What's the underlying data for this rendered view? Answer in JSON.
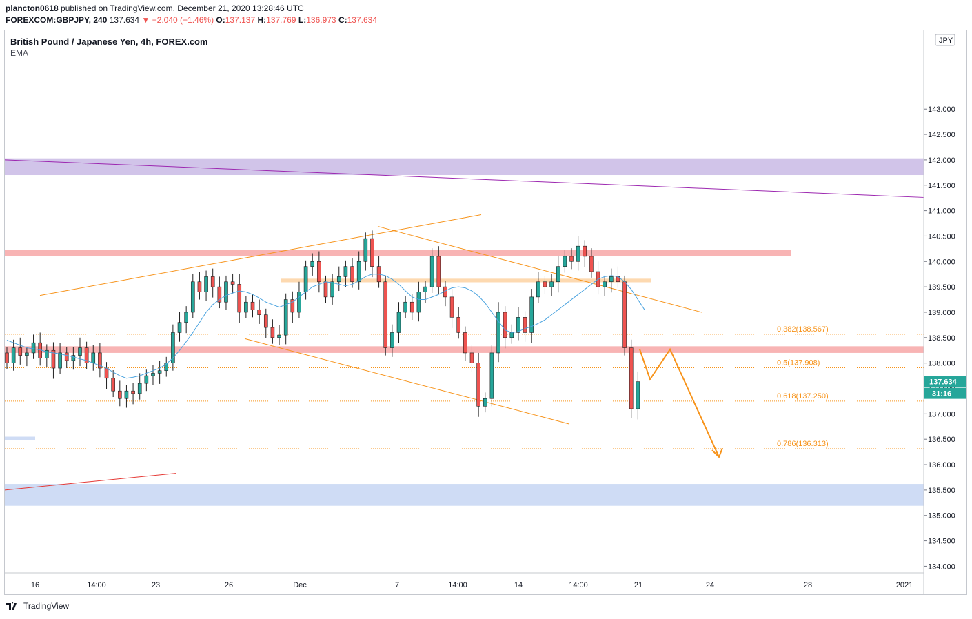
{
  "header": {
    "publisher": "plancton0618",
    "published_text": "published on TradingView.com, December 21, 2020 13:28:46 UTC",
    "symbol": "FOREXCOM:GBPJPY, 240",
    "last": "137.634",
    "change": "▼ −2.040 (−1.46%)",
    "o_label": "O:",
    "o_value": "137.137",
    "h_label": "H:",
    "h_value": "137.769",
    "l_label": "L:",
    "l_value": "136.973",
    "c_label": "C:",
    "c_value": "137.634"
  },
  "legend": {
    "title": "British Pound / Japanese Yen, 4h, FOREX.com",
    "indicator": "EMA"
  },
  "footer": {
    "brand": "TradingView"
  },
  "colors": {
    "up": "#26a69a",
    "down": "#ef5350",
    "orange": "#f7931a",
    "ema": "#4aa3df",
    "purple_trend": "#9c27b0",
    "red_trend": "#e53935"
  },
  "chart_data": {
    "type": "candlestick",
    "currency": "JPY",
    "ylim": [
      133.87,
      144.55
    ],
    "y_ticks": [
      "134.000",
      "134.500",
      "135.000",
      "135.500",
      "136.000",
      "136.500",
      "137.000",
      "137.500",
      "138.000",
      "138.500",
      "139.000",
      "139.500",
      "140.000",
      "140.500",
      "141.000",
      "141.500",
      "142.000",
      "142.500",
      "143.000"
    ],
    "x_ticks": [
      "16",
      "14:00",
      "23",
      "26",
      "Dec",
      "7",
      "14:00",
      "14",
      "14:00",
      "21",
      "24",
      "28",
      "2021"
    ],
    "last_price": "137.634",
    "countdown": "31:16",
    "fib_levels": [
      {
        "label": "0.382(138.567)",
        "price": 138.567
      },
      {
        "label": "0.5(137.908)",
        "price": 137.908
      },
      {
        "label": "0.618(137.250)",
        "price": 137.25
      },
      {
        "label": "0.786(136.313)",
        "price": 136.313
      }
    ],
    "zones": [
      {
        "name": "purple-resistance-zone",
        "from": 141.7,
        "to": 142.03,
        "color": "#d1c4e9"
      },
      {
        "name": "red-zone-upper",
        "from": 140.1,
        "to": 140.23,
        "color": "#f8b4b4"
      },
      {
        "name": "red-zone-lower",
        "from": 138.2,
        "to": 138.33,
        "color": "#f8b4b4"
      },
      {
        "name": "orange-zone",
        "from": 139.59,
        "to": 139.66,
        "color": "#fdd9b0"
      },
      {
        "name": "blue-support-zone",
        "from": 135.19,
        "to": 135.62,
        "color": "#cfdcf5"
      },
      {
        "name": "blue-small-zone",
        "from": 136.48,
        "to": 136.55,
        "color": "#cfdcf5"
      }
    ],
    "ema": [
      138.45,
      138.4,
      138.35,
      138.3,
      138.28,
      138.26,
      138.22,
      138.2,
      138.18,
      138.15,
      138.12,
      138.08,
      138.05,
      138.0,
      137.95,
      137.9,
      137.82,
      137.75,
      137.7,
      137.72,
      137.75,
      137.8,
      137.85,
      137.9,
      137.98,
      138.1,
      138.25,
      138.42,
      138.6,
      138.8,
      139.0,
      139.15,
      139.25,
      139.33,
      139.38,
      139.42,
      139.4,
      139.35,
      139.28,
      139.2,
      139.15,
      139.1,
      139.15,
      139.2,
      139.3,
      139.4,
      139.5,
      139.55,
      139.6,
      139.58,
      139.55,
      139.52,
      139.55,
      139.62,
      139.7,
      139.75,
      139.75,
      139.72,
      139.65,
      139.55,
      139.42,
      139.3,
      139.25,
      139.25,
      139.3,
      139.35,
      139.42,
      139.48,
      139.5,
      139.48,
      139.42,
      139.32,
      139.18,
      139.0,
      138.82,
      138.65,
      138.6,
      138.62,
      138.68,
      138.72,
      138.78,
      138.85,
      138.95,
      139.05,
      139.15,
      139.25,
      139.35,
      139.45,
      139.55,
      139.65,
      139.7,
      139.72,
      139.7,
      139.6,
      139.45,
      139.25,
      139.05
    ]
  }
}
